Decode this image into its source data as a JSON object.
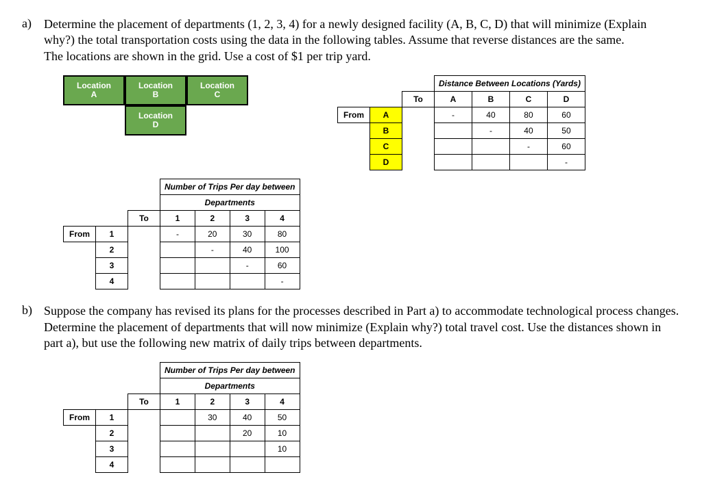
{
  "partA": {
    "label": "a)",
    "text": "Determine the placement of departments (1, 2, 3, 4) for a newly designed facility (A, B, C, D) that will minimize (Explain why?) the total transportation costs using the data in the following tables. Assume that reverse distances are the same.",
    "text2": "The locations are shown in the grid. Use a cost of $1 per trip yard."
  },
  "locGrid": {
    "A_top": "Location",
    "A_bot": "A",
    "B_top": "Location",
    "B_bot": "B",
    "C_top": "Location",
    "C_bot": "C",
    "D_top": "Location",
    "D_bot": "D"
  },
  "distTable": {
    "title": "Distance Between Locations (Yards)",
    "toLabel": "To",
    "fromLabel": "From",
    "cols": {
      "A": "A",
      "B": "B",
      "C": "C",
      "D": "D"
    },
    "rows": {
      "A": {
        "lbl": "A",
        "A": "-",
        "B": "40",
        "C": "80",
        "D": "60"
      },
      "B": {
        "lbl": "B",
        "A": "",
        "B": "-",
        "C": "40",
        "D": "50"
      },
      "C": {
        "lbl": "C",
        "A": "",
        "B": "",
        "C": "-",
        "D": "60"
      },
      "D": {
        "lbl": "D",
        "A": "",
        "B": "",
        "C": "",
        "D": "-"
      }
    }
  },
  "tripsA": {
    "title": "Number of Trips Per day between",
    "sub": "Departments",
    "toLabel": "To",
    "fromLabel": "From",
    "cols": {
      "c1": "1",
      "c2": "2",
      "c3": "3",
      "c4": "4"
    },
    "rows": {
      "r1": {
        "lbl": "1",
        "c1": "-",
        "c2": "20",
        "c3": "30",
        "c4": "80"
      },
      "r2": {
        "lbl": "2",
        "c1": "",
        "c2": "-",
        "c3": "40",
        "c4": "100"
      },
      "r3": {
        "lbl": "3",
        "c1": "",
        "c2": "",
        "c3": "-",
        "c4": "60"
      },
      "r4": {
        "lbl": "4",
        "c1": "",
        "c2": "",
        "c3": "",
        "c4": "-"
      }
    }
  },
  "partB": {
    "label": "b)",
    "text": "Suppose the company has revised its plans for the processes described in Part a) to accommodate technological process changes. Determine the placement of departments that will now minimize (Explain why?) total travel cost. Use the distances shown in part a), but use the following new matrix of daily trips between departments."
  },
  "tripsB": {
    "title": "Number of Trips Per day between",
    "sub": "Departments",
    "toLabel": "To",
    "fromLabel": "From",
    "cols": {
      "c1": "1",
      "c2": "2",
      "c3": "3",
      "c4": "4"
    },
    "rows": {
      "r1": {
        "lbl": "1",
        "c1": "",
        "c2": "30",
        "c3": "40",
        "c4": "50"
      },
      "r2": {
        "lbl": "2",
        "c1": "",
        "c2": "",
        "c3": "20",
        "c4": "10"
      },
      "r3": {
        "lbl": "3",
        "c1": "",
        "c2": "",
        "c3": "",
        "c4": "10"
      },
      "r4": {
        "lbl": "4",
        "c1": "",
        "c2": "",
        "c3": "",
        "c4": ""
      }
    }
  }
}
